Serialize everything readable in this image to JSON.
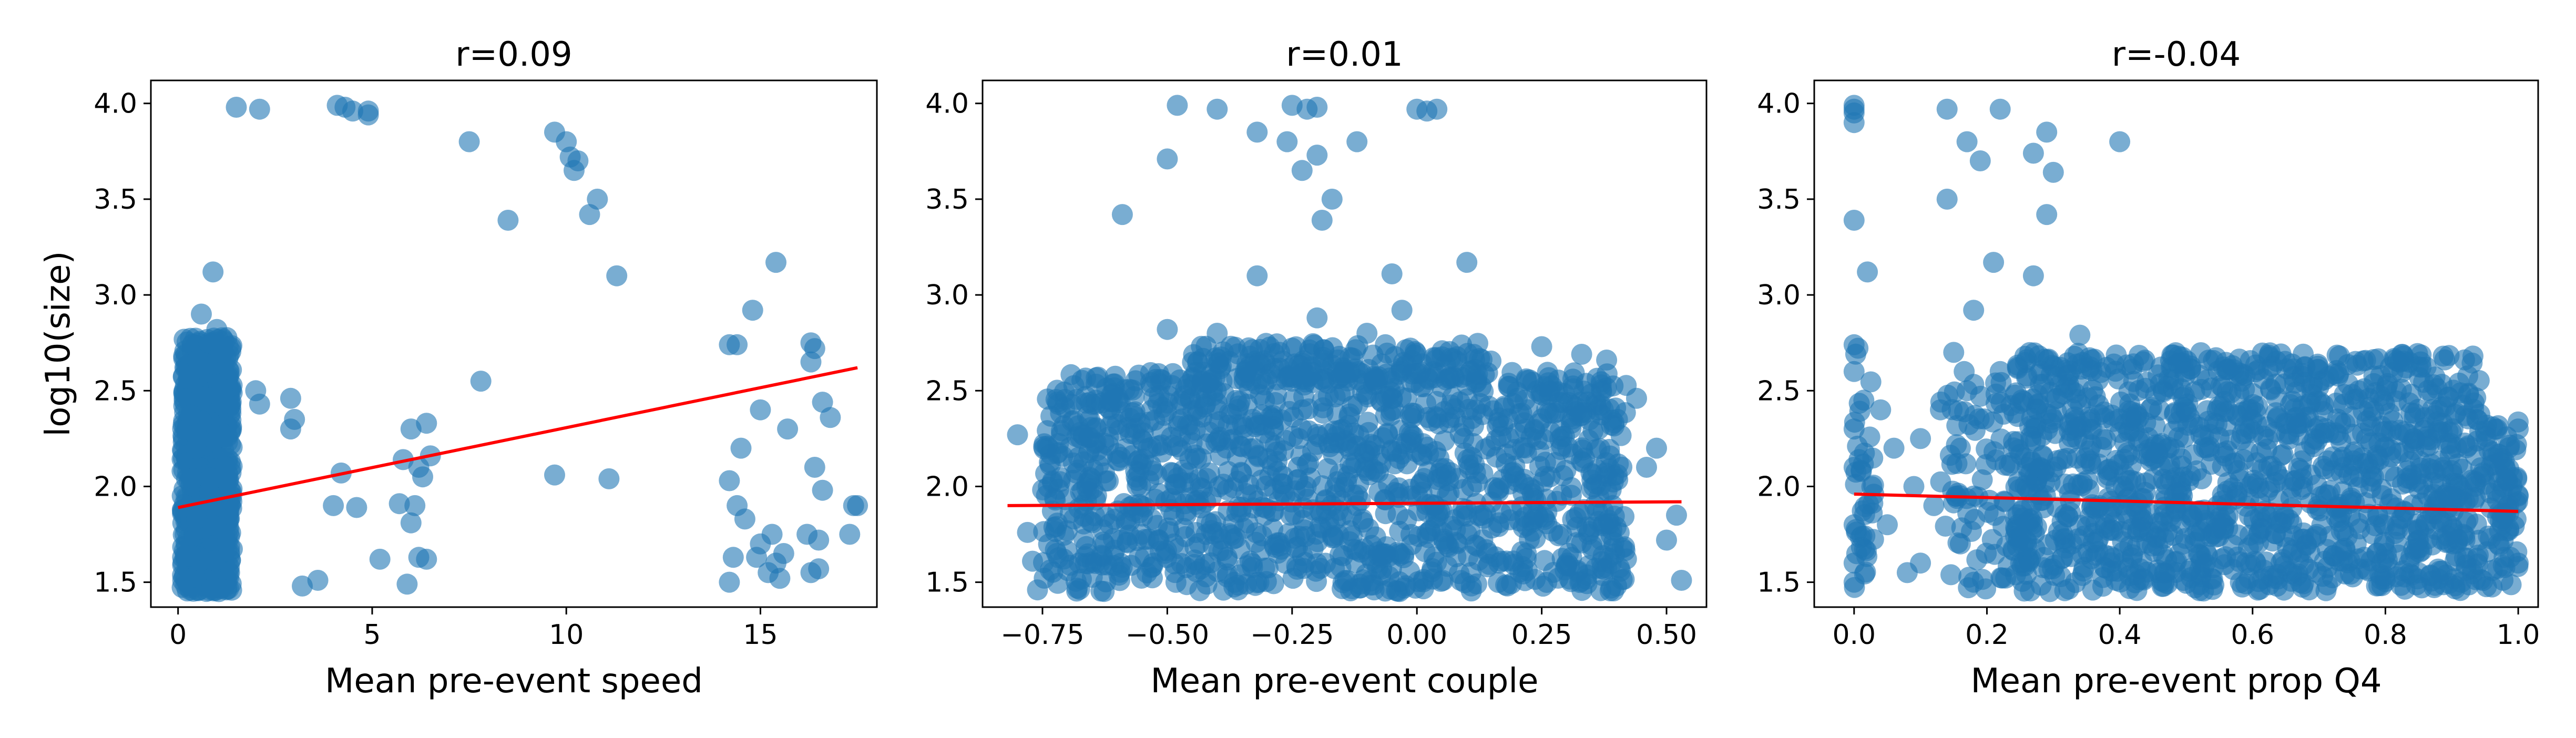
{
  "chart_data": [
    {
      "type": "scatter",
      "title": "r=0.09",
      "xlabel": "Mean pre-event speed",
      "ylabel": "log10(size)",
      "xlim": [
        -0.7,
        18.0
      ],
      "ylim": [
        1.37,
        4.12
      ],
      "xticks": [
        0,
        5,
        10,
        15
      ],
      "xtick_labels": [
        "0",
        "5",
        "10",
        "15"
      ],
      "yticks": [
        1.5,
        2.0,
        2.5,
        3.0,
        3.5,
        4.0
      ],
      "ytick_labels": [
        "1.5",
        "2.0",
        "2.5",
        "3.0",
        "3.5",
        "4.0"
      ],
      "point_color": "#1f77b4",
      "line_color": "#ff0000",
      "fit_line": [
        [
          0.0,
          1.89
        ],
        [
          17.5,
          2.62
        ]
      ],
      "grid": false,
      "points": [
        [
          0.9,
          3.12
        ],
        [
          0.6,
          2.9
        ],
        [
          1.0,
          2.82
        ],
        [
          0.8,
          2.75
        ],
        [
          1.1,
          2.7
        ],
        [
          0.5,
          2.66
        ],
        [
          1.5,
          3.98
        ],
        [
          2.1,
          3.97
        ],
        [
          4.1,
          3.99
        ],
        [
          4.3,
          3.98
        ],
        [
          4.5,
          3.96
        ],
        [
          4.9,
          3.94
        ],
        [
          4.9,
          3.96
        ],
        [
          7.5,
          3.8
        ],
        [
          8.5,
          3.39
        ],
        [
          9.7,
          3.85
        ],
        [
          10.0,
          3.8
        ],
        [
          10.1,
          3.72
        ],
        [
          10.2,
          3.65
        ],
        [
          10.3,
          3.7
        ],
        [
          10.6,
          3.42
        ],
        [
          10.8,
          3.5
        ],
        [
          11.3,
          3.1
        ],
        [
          2.0,
          2.5
        ],
        [
          2.1,
          2.43
        ],
        [
          2.9,
          2.46
        ],
        [
          3.0,
          2.35
        ],
        [
          2.9,
          2.3
        ],
        [
          4.2,
          2.07
        ],
        [
          4.0,
          1.9
        ],
        [
          4.6,
          1.89
        ],
        [
          5.2,
          1.62
        ],
        [
          3.2,
          1.48
        ],
        [
          3.6,
          1.51
        ],
        [
          5.8,
          2.14
        ],
        [
          6.0,
          2.3
        ],
        [
          6.2,
          2.1
        ],
        [
          6.4,
          2.33
        ],
        [
          6.5,
          2.16
        ],
        [
          6.3,
          2.05
        ],
        [
          6.1,
          1.9
        ],
        [
          5.7,
          1.91
        ],
        [
          6.0,
          1.81
        ],
        [
          6.2,
          1.63
        ],
        [
          6.4,
          1.62
        ],
        [
          5.9,
          1.49
        ],
        [
          7.8,
          2.55
        ],
        [
          9.7,
          2.06
        ],
        [
          11.1,
          2.04
        ],
        [
          14.2,
          2.74
        ],
        [
          14.4,
          2.74
        ],
        [
          14.8,
          2.92
        ],
        [
          15.4,
          3.17
        ],
        [
          15.0,
          2.4
        ],
        [
          15.7,
          2.3
        ],
        [
          14.5,
          2.2
        ],
        [
          14.2,
          2.03
        ],
        [
          14.4,
          1.9
        ],
        [
          14.6,
          1.83
        ],
        [
          14.3,
          1.63
        ],
        [
          14.2,
          1.5
        ],
        [
          14.9,
          1.63
        ],
        [
          15.2,
          1.55
        ],
        [
          15.4,
          1.6
        ],
        [
          15.6,
          1.65
        ],
        [
          15.5,
          1.52
        ],
        [
          15.0,
          1.7
        ],
        [
          16.3,
          2.75
        ],
        [
          16.4,
          2.72
        ],
        [
          16.3,
          2.65
        ],
        [
          16.6,
          2.44
        ],
        [
          16.8,
          2.36
        ],
        [
          16.4,
          2.1
        ],
        [
          16.6,
          1.98
        ],
        [
          16.2,
          1.75
        ],
        [
          16.5,
          1.72
        ],
        [
          16.3,
          1.55
        ],
        [
          16.5,
          1.57
        ],
        [
          17.4,
          1.9
        ],
        [
          17.5,
          1.9
        ],
        [
          17.3,
          1.75
        ],
        [
          15.3,
          1.75
        ]
      ],
      "clusters": [
        {
          "x": [
            0.1,
            1.4
          ],
          "y": [
            1.45,
            2.78
          ],
          "count": 800
        }
      ]
    },
    {
      "type": "scatter",
      "title": "r=0.01",
      "xlabel": "Mean pre-event couple",
      "ylabel": "",
      "xlim": [
        -0.87,
        0.58
      ],
      "ylim": [
        1.37,
        4.12
      ],
      "xticks": [
        -0.75,
        -0.5,
        -0.25,
        0.0,
        0.25,
        0.5
      ],
      "xtick_labels": [
        "−0.75",
        "−0.50",
        "−0.25",
        "0.00",
        "0.25",
        "0.50"
      ],
      "yticks": [
        1.5,
        2.0,
        2.5,
        3.0,
        3.5,
        4.0
      ],
      "ytick_labels": [
        "1.5",
        "2.0",
        "2.5",
        "3.0",
        "3.5",
        "4.0"
      ],
      "point_color": "#1f77b4",
      "line_color": "#ff0000",
      "fit_line": [
        [
          -0.82,
          1.9
        ],
        [
          0.53,
          1.92
        ]
      ],
      "grid": false,
      "points": [
        [
          -0.48,
          3.99
        ],
        [
          -0.5,
          3.71
        ],
        [
          -0.59,
          3.42
        ],
        [
          -0.4,
          3.97
        ],
        [
          -0.32,
          3.85
        ],
        [
          -0.25,
          3.99
        ],
        [
          -0.22,
          3.97
        ],
        [
          -0.2,
          3.98
        ],
        [
          -0.23,
          3.65
        ],
        [
          -0.26,
          3.8
        ],
        [
          -0.2,
          3.73
        ],
        [
          -0.17,
          3.5
        ],
        [
          -0.19,
          3.39
        ],
        [
          -0.12,
          3.8
        ],
        [
          -0.32,
          3.1
        ],
        [
          -0.05,
          3.11
        ],
        [
          0.0,
          3.97
        ],
        [
          0.02,
          3.96
        ],
        [
          0.04,
          3.97
        ],
        [
          0.1,
          3.17
        ],
        [
          -0.03,
          2.92
        ],
        [
          -0.2,
          2.88
        ],
        [
          -0.4,
          2.8
        ],
        [
          -0.5,
          2.82
        ],
        [
          -0.1,
          2.8
        ],
        [
          0.33,
          2.69
        ],
        [
          0.38,
          2.66
        ],
        [
          0.25,
          2.73
        ],
        [
          0.44,
          2.46
        ],
        [
          0.48,
          2.2
        ],
        [
          0.52,
          1.85
        ],
        [
          0.5,
          1.72
        ],
        [
          0.53,
          1.51
        ],
        [
          -0.8,
          2.27
        ],
        [
          -0.78,
          1.76
        ],
        [
          -0.77,
          1.61
        ],
        [
          -0.76,
          1.46
        ],
        [
          0.4,
          1.48
        ],
        [
          0.46,
          2.1
        ]
      ],
      "clusters": [
        {
          "x": [
            -0.75,
            0.42
          ],
          "y": [
            1.45,
            2.6
          ],
          "count": 1300
        },
        {
          "x": [
            -0.45,
            0.15
          ],
          "y": [
            2.55,
            2.75
          ],
          "count": 150
        }
      ]
    },
    {
      "type": "scatter",
      "title": "r=-0.04",
      "xlabel": "Mean pre-event prop Q4",
      "ylabel": "",
      "xlim": [
        -0.06,
        1.03
      ],
      "ylim": [
        1.37,
        4.12
      ],
      "xticks": [
        0.0,
        0.2,
        0.4,
        0.6,
        0.8,
        1.0
      ],
      "xtick_labels": [
        "0.0",
        "0.2",
        "0.4",
        "0.6",
        "0.8",
        "1.0"
      ],
      "yticks": [
        1.5,
        2.0,
        2.5,
        3.0,
        3.5,
        4.0
      ],
      "ytick_labels": [
        "1.5",
        "2.0",
        "2.5",
        "3.0",
        "3.5",
        "4.0"
      ],
      "point_color": "#1f77b4",
      "line_color": "#ff0000",
      "fit_line": [
        [
          0.0,
          1.96
        ],
        [
          1.0,
          1.87
        ]
      ],
      "grid": false,
      "points": [
        [
          0.0,
          3.99
        ],
        [
          0.0,
          3.95
        ],
        [
          0.0,
          3.9
        ],
        [
          0.0,
          3.97
        ],
        [
          0.0,
          3.39
        ],
        [
          0.02,
          3.12
        ],
        [
          0.14,
          3.97
        ],
        [
          0.14,
          3.5
        ],
        [
          0.17,
          3.8
        ],
        [
          0.19,
          3.7
        ],
        [
          0.21,
          3.17
        ],
        [
          0.22,
          3.97
        ],
        [
          0.27,
          3.74
        ],
        [
          0.29,
          3.85
        ],
        [
          0.3,
          3.64
        ],
        [
          0.29,
          3.42
        ],
        [
          0.27,
          3.1
        ],
        [
          0.18,
          2.92
        ],
        [
          0.34,
          2.79
        ],
        [
          0.4,
          3.8
        ],
        [
          0.0,
          2.74
        ],
        [
          0.0,
          2.6
        ],
        [
          0.0,
          2.3
        ],
        [
          0.0,
          2.1
        ],
        [
          0.0,
          1.8
        ],
        [
          0.0,
          1.6
        ],
        [
          0.0,
          1.5
        ],
        [
          0.04,
          2.4
        ],
        [
          0.06,
          2.2
        ],
        [
          0.05,
          1.8
        ],
        [
          0.09,
          2.0
        ],
        [
          0.1,
          1.6
        ],
        [
          0.1,
          2.25
        ],
        [
          0.08,
          1.55
        ],
        [
          0.12,
          1.9
        ],
        [
          0.13,
          2.4
        ],
        [
          0.15,
          2.7
        ],
        [
          0.17,
          2.5
        ],
        [
          0.16,
          2.2
        ],
        [
          0.18,
          1.95
        ],
        [
          0.16,
          1.7
        ],
        [
          0.18,
          1.5
        ],
        [
          0.22,
          2.6
        ],
        [
          0.97,
          1.7
        ],
        [
          0.98,
          2.1
        ],
        [
          1.0,
          1.6
        ],
        [
          1.0,
          1.95
        ],
        [
          1.0,
          2.3
        ]
      ],
      "clusters": [
        {
          "x": [
            0.24,
            0.95
          ],
          "y": [
            1.45,
            2.7
          ],
          "count": 1300
        },
        {
          "x": [
            0.0,
            0.03
          ],
          "y": [
            1.45,
            2.75
          ],
          "count": 40
        },
        {
          "x": [
            0.13,
            0.25
          ],
          "y": [
            1.45,
            2.6
          ],
          "count": 80
        },
        {
          "x": [
            0.95,
            1.0
          ],
          "y": [
            1.45,
            2.35
          ],
          "count": 80
        }
      ]
    }
  ]
}
